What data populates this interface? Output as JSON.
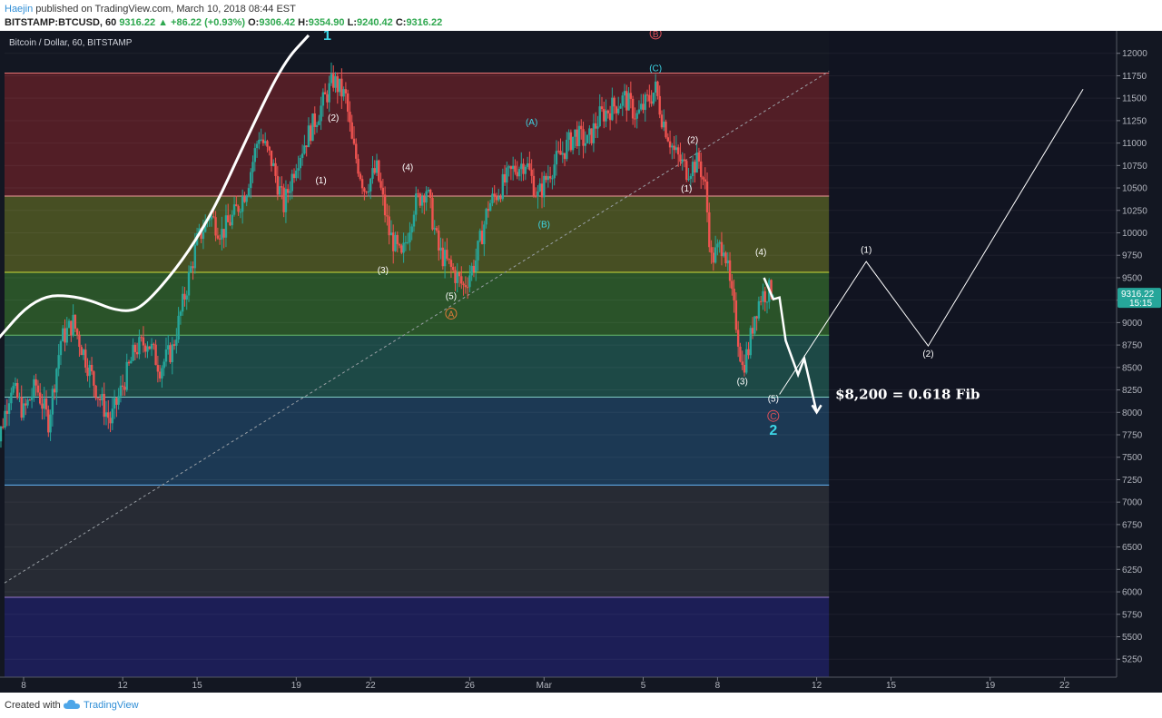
{
  "header": {
    "author": "Haejin",
    "published_text": "published on TradingView.com, March 10, 2018 08:44 EST",
    "symbol": "BITSTAMP:BTCUSD, 60",
    "last": "9316.22",
    "change": "+86.22 (+0.93%)",
    "o_label": "O:",
    "o_value": "9306.42",
    "h_label": "H:",
    "h_value": "9354.90",
    "l_label": "L:",
    "l_value": "9240.42",
    "c_label": "C:",
    "c_value": "9316.22"
  },
  "footer": {
    "created_with": "Created with",
    "brand": "TradingView"
  },
  "chart_data": {
    "type": "candlestick",
    "title": "Bitcoin / Dollar, 60, BITSTAMP",
    "ylim": [
      5050,
      12250
    ],
    "y_ticks": [
      5250,
      5500,
      5750,
      6000,
      6250,
      6500,
      6750,
      7000,
      7250,
      7500,
      7750,
      8000,
      8250,
      8500,
      8750,
      9000,
      9250,
      9500,
      9750,
      10000,
      10250,
      10500,
      10750,
      11000,
      11250,
      11500,
      11750,
      12000
    ],
    "x_ticks": [
      "8",
      "12",
      "15",
      "19",
      "22",
      "26",
      "Mar",
      "5",
      "8",
      "12",
      "15",
      "19",
      "22"
    ],
    "last_price": "9316.22",
    "countdown": "15:15",
    "colors": {
      "background": "#131722",
      "up": "#26a69a",
      "down": "#ef5350",
      "white_line": "#ffffff",
      "cyan_label": "#3dd6e6",
      "orange_label": "#e07b39",
      "red_label": "#e0505a"
    },
    "fib_levels": [
      {
        "price": 11780,
        "color": "#e57373"
      },
      {
        "price": 10410,
        "color": "#ef9a9a"
      },
      {
        "price": 9560,
        "color": "#cddc39"
      },
      {
        "price": 8860,
        "color": "#66bb6a"
      },
      {
        "price": 8170,
        "color": "#80cbc4"
      },
      {
        "price": 7190,
        "color": "#64b5f6"
      },
      {
        "price": 5940,
        "color": "#9575cd"
      }
    ],
    "fib_zone_colors": [
      "#5a1f27",
      "#4e5524",
      "#2e5a2a",
      "#1f4f4a",
      "#1e3d5a",
      "#2a2d36",
      "#1e1f5c"
    ],
    "price_path": [
      [
        "Feb 6 18:00",
        8400
      ],
      [
        "Feb 7 00:00",
        7700
      ],
      [
        "Feb 7 12:00",
        8300
      ],
      [
        "Feb 8 00:00",
        8000
      ],
      [
        "Feb 8 12:00",
        8300
      ],
      [
        "Feb 9 00:00",
        7900
      ],
      [
        "Feb 9 12:00",
        8800
      ],
      [
        "Feb 10 00:00",
        9000
      ],
      [
        "Feb 10 12:00",
        8600
      ],
      [
        "Feb 11 00:00",
        8200
      ],
      [
        "Feb 11 12:00",
        7900
      ],
      [
        "Feb 12 00:00",
        8300
      ],
      [
        "Feb 12 12:00",
        8700
      ],
      [
        "Feb 13 00:00",
        8800
      ],
      [
        "Feb 13 12:00",
        8500
      ],
      [
        "Feb 14 00:00",
        8700
      ],
      [
        "Feb 14 12:00",
        9300
      ],
      [
        "Feb 15 00:00",
        9900
      ],
      [
        "Feb 15 12:00",
        10200
      ],
      [
        "Feb 16 00:00",
        10000
      ],
      [
        "Feb 16 12:00",
        10200
      ],
      [
        "Feb 17 00:00",
        10500
      ],
      [
        "Feb 17 12:00",
        11100
      ],
      [
        "Feb 18 00:00",
        10800
      ],
      [
        "Feb 18 12:00",
        10300
      ],
      [
        "Feb 19 00:00",
        10800
      ],
      [
        "Feb 19 12:00",
        11100
      ],
      [
        "Feb 20 00:00",
        11400
      ],
      [
        "Feb 20 12:00",
        11700
      ],
      [
        "Feb 21 00:00",
        11500
      ],
      [
        "Feb 21 06:00",
        11000
      ],
      [
        "Feb 21 18:00",
        10500
      ],
      [
        "Feb 22 06:00",
        10700
      ],
      [
        "Feb 22 18:00",
        10000
      ],
      [
        "Feb 23 06:00",
        9700
      ],
      [
        "Feb 23 18:00",
        10300
      ],
      [
        "Feb 24 06:00",
        10500
      ],
      [
        "Feb 24 18:00",
        9800
      ],
      [
        "Feb 25 06:00",
        9600
      ],
      [
        "Feb 25 18:00",
        9400
      ],
      [
        "Feb 26 06:00",
        9700
      ],
      [
        "Feb 26 18:00",
        10300
      ],
      [
        "Feb 27 06:00",
        10500
      ],
      [
        "Feb 27 18:00",
        10700
      ],
      [
        "Feb 28 06:00",
        10800
      ],
      [
        "Feb 28 18:00",
        10400
      ],
      [
        "Mar 1 06:00",
        10700
      ],
      [
        "Mar 1 18:00",
        10900
      ],
      [
        "Mar 2 06:00",
        11100
      ],
      [
        "Mar 2 18:00",
        11000
      ],
      [
        "Mar 3 06:00",
        11300
      ],
      [
        "Mar 3 18:00",
        11400
      ],
      [
        "Mar 4 06:00",
        11500
      ],
      [
        "Mar 4 18:00",
        11300
      ],
      [
        "Mar 5 06:00",
        11500
      ],
      [
        "Mar 5 12:00",
        11600
      ],
      [
        "Mar 5 18:00",
        11300
      ],
      [
        "Mar 6 06:00",
        10900
      ],
      [
        "Mar 6 18:00",
        10700
      ],
      [
        "Mar 7 06:00",
        10800
      ],
      [
        "Mar 7 12:00",
        10500
      ],
      [
        "Mar 7 18:00",
        9700
      ],
      [
        "Mar 8 06:00",
        9900
      ],
      [
        "Mar 8 12:00",
        9400
      ],
      [
        "Mar 8 18:00",
        9000
      ],
      [
        "Mar 9 00:00",
        8500
      ],
      [
        "Mar 9 06:00",
        8700
      ],
      [
        "Mar 9 12:00",
        9100
      ],
      [
        "Mar 9 18:00",
        9300
      ],
      [
        "Mar 10 06:00",
        9380
      ]
    ],
    "wave_labels": [
      {
        "text": "1",
        "t": "Feb 20 06:00",
        "price": 12150,
        "style": "cyan_big"
      },
      {
        "text": "(2)",
        "t": "Feb 20 12:00",
        "price": 11250,
        "style": "white"
      },
      {
        "text": "(1)",
        "t": "Feb 20 00:00",
        "price": 10550,
        "style": "white"
      },
      {
        "text": "(4)",
        "t": "Feb 23 12:00",
        "price": 10700,
        "style": "white"
      },
      {
        "text": "(3)",
        "t": "Feb 22 12:00",
        "price": 9550,
        "style": "white"
      },
      {
        "text": "(5)",
        "t": "Feb 25 06:00",
        "price": 9260,
        "style": "white"
      },
      {
        "text": "A",
        "t": "Feb 25 06:00",
        "price": 9060,
        "style": "orange_circle"
      },
      {
        "text": "(A)",
        "t": "Feb 28 12:00",
        "price": 11200,
        "style": "cyan"
      },
      {
        "text": "(B)",
        "t": "Mar 1 00:00",
        "price": 10060,
        "style": "cyan"
      },
      {
        "text": "B",
        "t": "Mar 5 12:00",
        "price": 12180,
        "style": "red_circle"
      },
      {
        "text": "(C)",
        "t": "Mar 5 12:00",
        "price": 11800,
        "style": "cyan"
      },
      {
        "text": "(2)",
        "t": "Mar 7 00:00",
        "price": 11000,
        "style": "white"
      },
      {
        "text": "(1)",
        "t": "Mar 6 18:00",
        "price": 10460,
        "style": "white"
      },
      {
        "text": "(4)",
        "t": "Mar 9 18:00",
        "price": 9750,
        "style": "white"
      },
      {
        "text": "(3)",
        "t": "Mar 9 00:00",
        "price": 8310,
        "style": "white"
      },
      {
        "text": "(5)",
        "t": "Mar 10 06:00",
        "price": 8120,
        "style": "white"
      },
      {
        "text": "C",
        "t": "Mar 10 06:00",
        "price": 7920,
        "style": "red_circle"
      },
      {
        "text": "2",
        "t": "Mar 10 06:00",
        "price": 7750,
        "style": "cyan_big"
      },
      {
        "text": "(1)",
        "t": "Mar 14 00:00",
        "price": 9780,
        "style": "white"
      },
      {
        "text": "(2)",
        "t": "Mar 16 12:00",
        "price": 8620,
        "style": "white"
      }
    ],
    "annotation": "$8,200 = 0.618 Fib"
  }
}
